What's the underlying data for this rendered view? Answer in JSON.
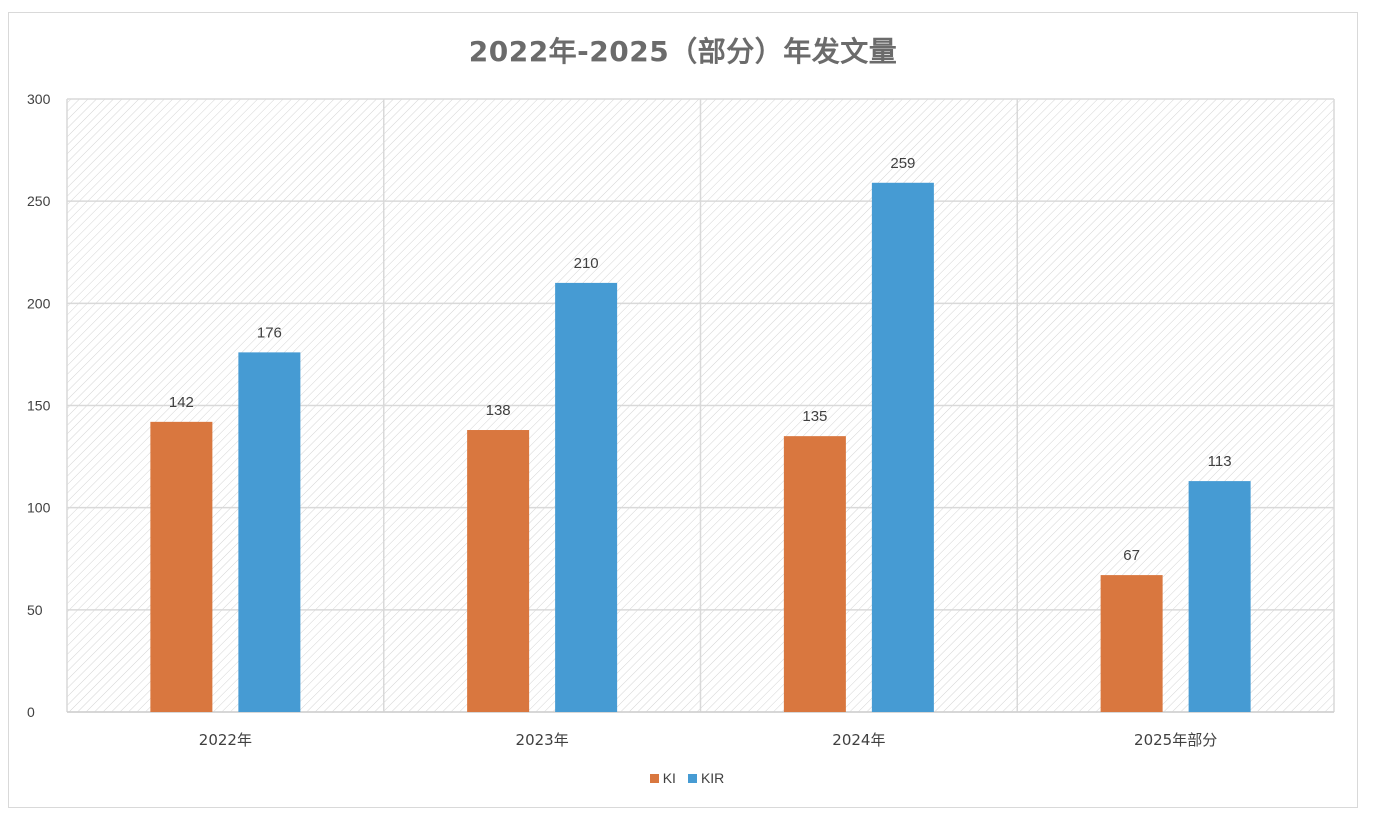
{
  "chart_data": {
    "type": "bar",
    "title": "2022年-2025（部分）年发文量",
    "categories": [
      "2022年",
      "2023年",
      "2024年",
      "2025年部分"
    ],
    "series": [
      {
        "name": "KI",
        "values": [
          142,
          138,
          135,
          67
        ],
        "color": "#D9773F"
      },
      {
        "name": "KIR",
        "values": [
          176,
          210,
          259,
          113
        ],
        "color": "#469BD3"
      }
    ],
    "ylim": [
      0,
      300
    ],
    "yticks": [
      0,
      50,
      100,
      150,
      200,
      250,
      300
    ],
    "xlabel": "",
    "ylabel": "",
    "data_labels": true,
    "grid": true,
    "legend_position": "bottom"
  }
}
